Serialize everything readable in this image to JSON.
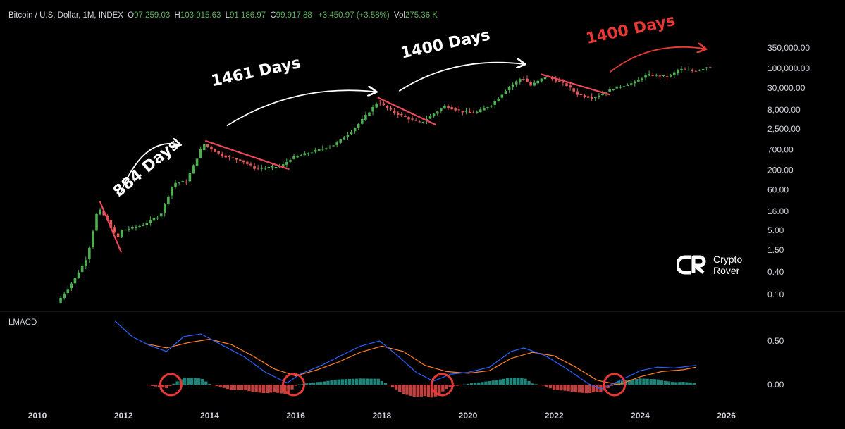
{
  "header": {
    "symbol": "Bitcoin / U.S. Dollar, 1M, INDEX",
    "open_key": "O",
    "open": "97,259.03",
    "high_key": "H",
    "high": "103,915.63",
    "low_key": "L",
    "low": "91,186.97",
    "close_key": "C",
    "close": "99,917.88",
    "change": "+3,450.97 (+3.58%)",
    "vol_key": "Vol",
    "vol": "275.36 K"
  },
  "lmacd_label": "LMACD",
  "logo": {
    "line1": "Crypto",
    "line2": "Rover"
  },
  "colors": {
    "up": "#4caf50",
    "down": "#e05a5a",
    "macd": "#2962ff",
    "signal": "#ff7f2a",
    "trend": "#e8485a",
    "circle": "#e53935"
  },
  "chart_data": {
    "type": "candlestick",
    "price_scale": "log",
    "price_ticks": [
      "350,000.00",
      "100,000.00",
      "30,000.00",
      "8,000.00",
      "2,500.00",
      "700.00",
      "200.00",
      "60.00",
      "16.00",
      "5.00",
      "1.50",
      "0.40",
      "0.10"
    ],
    "price_tick_values": [
      350000,
      100000,
      30000,
      8000,
      2500,
      700,
      200,
      60,
      16,
      5,
      1.5,
      0.4,
      0.1
    ],
    "x_ticks": [
      "2010",
      "2012",
      "2014",
      "2016",
      "2018",
      "2020",
      "2022",
      "2024",
      "2026"
    ],
    "x_tick_values": [
      2010,
      2012,
      2014,
      2016,
      2018,
      2020,
      2022,
      2024,
      2026
    ],
    "price_path": [
      [
        2010.5,
        0.06
      ],
      [
        2010.9,
        0.25
      ],
      [
        2011.2,
        1.0
      ],
      [
        2011.45,
        20
      ],
      [
        2011.65,
        10
      ],
      [
        2011.9,
        3
      ],
      [
        2012.0,
        5
      ],
      [
        2012.5,
        7
      ],
      [
        2012.9,
        13
      ],
      [
        2013.2,
        90
      ],
      [
        2013.5,
        100
      ],
      [
        2013.9,
        1000
      ],
      [
        2014.3,
        500
      ],
      [
        2014.8,
        350
      ],
      [
        2015.1,
        220
      ],
      [
        2015.7,
        250
      ],
      [
        2015.95,
        420
      ],
      [
        2016.5,
        650
      ],
      [
        2016.95,
        950
      ],
      [
        2017.4,
        2500
      ],
      [
        2017.95,
        13000
      ],
      [
        2018.3,
        7000
      ],
      [
        2018.8,
        4000
      ],
      [
        2018.95,
        3600
      ],
      [
        2019.5,
        10000
      ],
      [
        2019.9,
        7200
      ],
      [
        2020.2,
        6500
      ],
      [
        2020.6,
        11000
      ],
      [
        2020.95,
        29000
      ],
      [
        2021.3,
        58000
      ],
      [
        2021.5,
        35000
      ],
      [
        2021.85,
        61000
      ],
      [
        2022.3,
        38000
      ],
      [
        2022.6,
        20000
      ],
      [
        2022.95,
        16500
      ],
      [
        2023.4,
        29000
      ],
      [
        2023.9,
        42000
      ],
      [
        2024.2,
        68000
      ],
      [
        2024.7,
        60000
      ],
      [
        2024.95,
        96000
      ],
      [
        2025.3,
        84000
      ],
      [
        2025.6,
        110000
      ]
    ],
    "trendlines": [
      [
        [
          2011.45,
          30
        ],
        [
          2011.95,
          1.3
        ]
      ],
      [
        [
          2013.9,
          1200
        ],
        [
          2015.85,
          210
        ]
      ],
      [
        [
          2017.9,
          17000
        ],
        [
          2019.25,
          3200
        ]
      ],
      [
        [
          2021.7,
          70000
        ],
        [
          2023.3,
          20000
        ]
      ]
    ],
    "arrows": [
      {
        "from": [
          2011.9,
          40
        ],
        "to": [
          2013.3,
          950
        ],
        "color": "#ffffff"
      },
      {
        "from": [
          2014.4,
          3000
        ],
        "to": [
          2017.85,
          24000
        ],
        "color": "#ffffff"
      },
      {
        "from": [
          2018.4,
          25000
        ],
        "to": [
          2021.3,
          130000
        ],
        "color": "#ffffff"
      },
      {
        "from": [
          2023.3,
          80000
        ],
        "to": [
          2025.5,
          330000
        ],
        "color": "#e53935"
      }
    ],
    "annotations": [
      {
        "text": "884 Days",
        "color": "white",
        "at": [
          2012.6,
          180
        ],
        "rotate": -40
      },
      {
        "text": "1461 Days",
        "color": "white",
        "at": [
          2015.1,
          60000
        ],
        "rotate": -12
      },
      {
        "text": "1400 Days",
        "color": "white",
        "at": [
          2019.5,
          330000
        ],
        "rotate": -12
      },
      {
        "text": "1400 Days",
        "color": "red",
        "at": [
          2023.8,
          800000
        ],
        "rotate": -12
      }
    ],
    "lmacd": {
      "ticks": [
        "0.50",
        "0.00"
      ],
      "tick_values": [
        0.5,
        0.0
      ],
      "macd": [
        [
          2011.8,
          0.73
        ],
        [
          2012.2,
          0.55
        ],
        [
          2012.6,
          0.45
        ],
        [
          2013.0,
          0.38
        ],
        [
          2013.4,
          0.55
        ],
        [
          2013.8,
          0.58
        ],
        [
          2014.3,
          0.45
        ],
        [
          2014.8,
          0.32
        ],
        [
          2015.3,
          0.14
        ],
        [
          2015.8,
          0.02
        ],
        [
          2016.1,
          0.12
        ],
        [
          2016.6,
          0.22
        ],
        [
          2017.0,
          0.32
        ],
        [
          2017.5,
          0.44
        ],
        [
          2017.95,
          0.5
        ],
        [
          2018.3,
          0.36
        ],
        [
          2018.8,
          0.14
        ],
        [
          2019.2,
          0.04
        ],
        [
          2019.6,
          0.12
        ],
        [
          2020.0,
          0.14
        ],
        [
          2020.5,
          0.2
        ],
        [
          2021.0,
          0.38
        ],
        [
          2021.3,
          0.42
        ],
        [
          2021.8,
          0.33
        ],
        [
          2022.3,
          0.18
        ],
        [
          2022.8,
          0.01
        ],
        [
          2023.1,
          -0.05
        ],
        [
          2023.5,
          0.04
        ],
        [
          2024.0,
          0.16
        ],
        [
          2024.4,
          0.2
        ],
        [
          2024.8,
          0.19
        ],
        [
          2025.3,
          0.22
        ]
      ],
      "signal": [
        [
          2012.5,
          0.47
        ],
        [
          2013.0,
          0.42
        ],
        [
          2013.5,
          0.48
        ],
        [
          2014.0,
          0.52
        ],
        [
          2014.5,
          0.46
        ],
        [
          2015.0,
          0.33
        ],
        [
          2015.5,
          0.18
        ],
        [
          2016.0,
          0.1
        ],
        [
          2016.5,
          0.17
        ],
        [
          2017.0,
          0.26
        ],
        [
          2017.5,
          0.37
        ],
        [
          2018.0,
          0.44
        ],
        [
          2018.5,
          0.38
        ],
        [
          2019.0,
          0.22
        ],
        [
          2019.5,
          0.15
        ],
        [
          2020.0,
          0.13
        ],
        [
          2020.5,
          0.16
        ],
        [
          2021.0,
          0.3
        ],
        [
          2021.5,
          0.37
        ],
        [
          2022.0,
          0.33
        ],
        [
          2022.5,
          0.2
        ],
        [
          2023.0,
          0.05
        ],
        [
          2023.5,
          0.0
        ],
        [
          2024.0,
          0.09
        ],
        [
          2024.5,
          0.15
        ],
        [
          2025.0,
          0.17
        ],
        [
          2025.3,
          0.2
        ]
      ],
      "highlights": [
        2013.1,
        2015.95,
        2019.4,
        2023.4
      ]
    }
  }
}
